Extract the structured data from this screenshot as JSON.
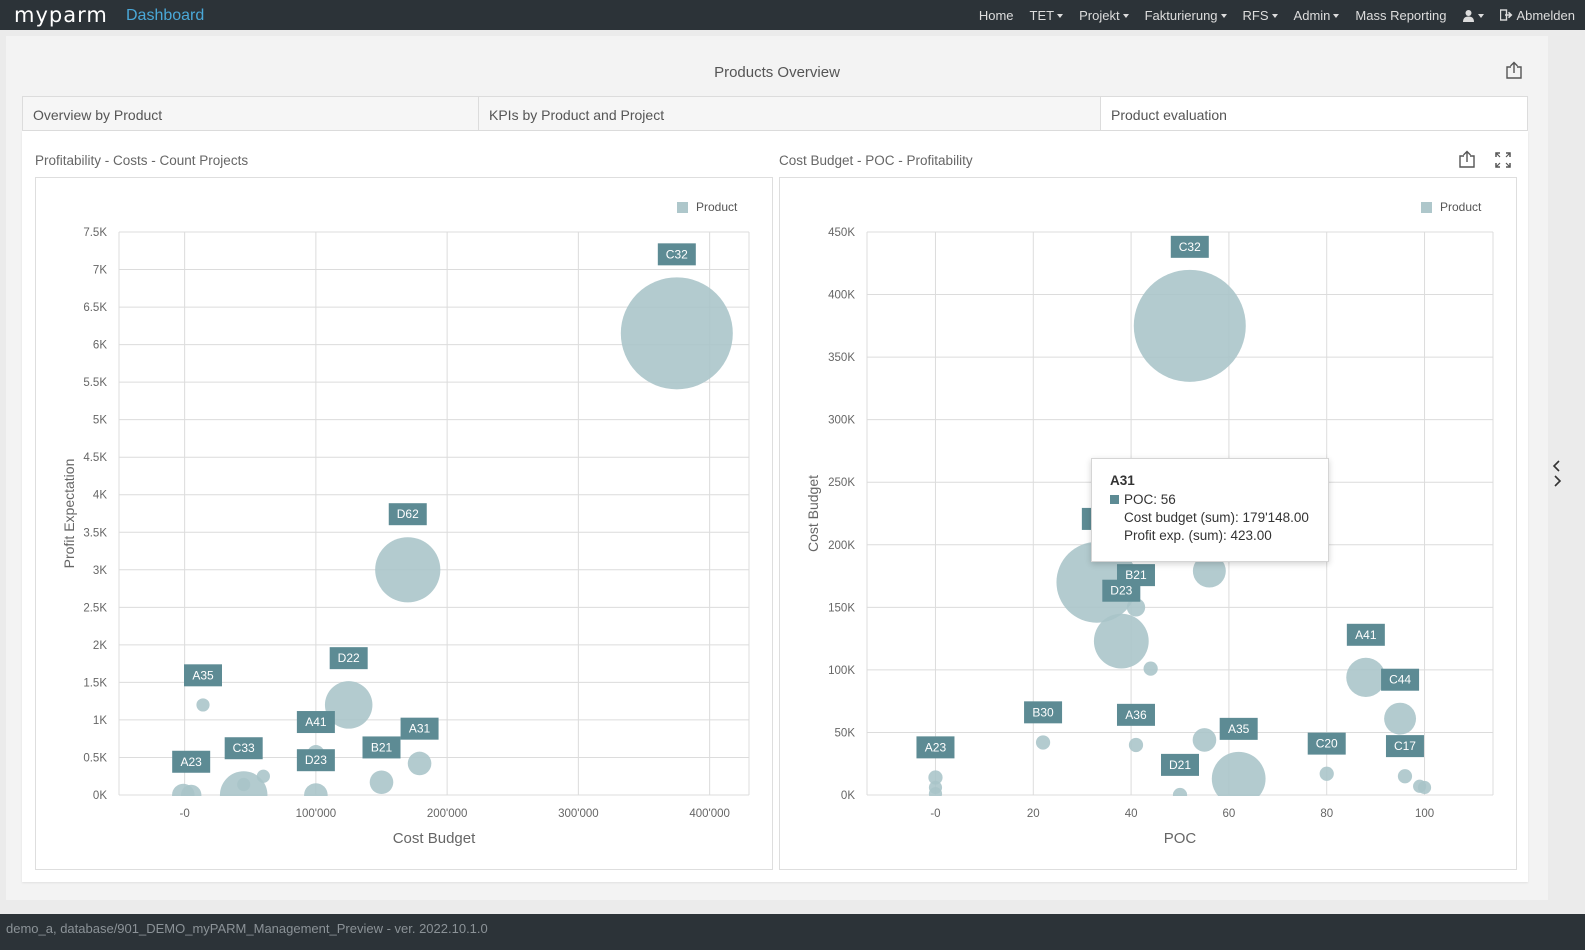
{
  "header": {
    "logo": "myparm",
    "title": "Dashboard",
    "nav": [
      {
        "label": "Home",
        "dropdown": false
      },
      {
        "label": "TET",
        "dropdown": true
      },
      {
        "label": "Projekt",
        "dropdown": true
      },
      {
        "label": "Fakturierung",
        "dropdown": true
      },
      {
        "label": "RFS",
        "dropdown": true
      },
      {
        "label": "Admin",
        "dropdown": true
      },
      {
        "label": "Mass Reporting",
        "dropdown": false
      }
    ],
    "logout": "Abmelden"
  },
  "page": {
    "title": "Products Overview",
    "tabs": [
      {
        "label": "Overview by Product",
        "active": false
      },
      {
        "label": "KPIs by Product and Project",
        "active": false
      },
      {
        "label": "Product evaluation",
        "active": true
      }
    ]
  },
  "colors": {
    "bubble": "#a9c4c8",
    "label_bg": "#5d8b94",
    "grid": "#dcdcdc",
    "topbar": "#2c3338",
    "brand_accent": "#4aa8d8"
  },
  "chart_data": [
    {
      "type": "scatter",
      "title": "Profitability - Costs - Count Projects",
      "xlabel": "Cost Budget",
      "ylabel": "Profit Expectation",
      "legend": "Product",
      "legend_position": "top-right",
      "grid": true,
      "xlim": [
        -50000,
        430000
      ],
      "ylim": [
        0,
        7500
      ],
      "xticks": [
        {
          "v": 0,
          "t": "-0"
        },
        {
          "v": 100000,
          "t": "100'000"
        },
        {
          "v": 200000,
          "t": "200'000"
        },
        {
          "v": 300000,
          "t": "300'000"
        },
        {
          "v": 400000,
          "t": "400'000"
        }
      ],
      "yticks": [
        {
          "v": 0,
          "t": "0K"
        },
        {
          "v": 500,
          "t": "0.5K"
        },
        {
          "v": 1000,
          "t": "1K"
        },
        {
          "v": 1500,
          "t": "1.5K"
        },
        {
          "v": 2000,
          "t": "2K"
        },
        {
          "v": 2500,
          "t": "2.5K"
        },
        {
          "v": 3000,
          "t": "3K"
        },
        {
          "v": 3500,
          "t": "3.5K"
        },
        {
          "v": 4000,
          "t": "4K"
        },
        {
          "v": 4500,
          "t": "4.5K"
        },
        {
          "v": 5000,
          "t": "5K"
        },
        {
          "v": 5500,
          "t": "5.5K"
        },
        {
          "v": 6000,
          "t": "6K"
        },
        {
          "v": 6500,
          "t": "6.5K"
        },
        {
          "v": 7000,
          "t": "7K"
        },
        {
          "v": 7500,
          "t": "7.5K"
        }
      ],
      "points": [
        {
          "label": "C32",
          "x": 375000,
          "y": 6150,
          "size": 10
        },
        {
          "label": "D62",
          "x": 170000,
          "y": 3000,
          "size": 5.5
        },
        {
          "label": "D22",
          "x": 125000,
          "y": 1200,
          "size": 3.8
        },
        {
          "label": "A35",
          "x": 14000,
          "y": 1200,
          "size": 0.5
        },
        {
          "label": "A41",
          "x": 100000,
          "y": 550,
          "size": 0.9
        },
        {
          "label": "A31",
          "x": 179000,
          "y": 420,
          "size": 1.5
        },
        {
          "label": "B21",
          "x": 150000,
          "y": 170,
          "size": 1.5
        },
        {
          "label": "D23",
          "x": 100000,
          "y": 0,
          "size": 1.5
        },
        {
          "label": "C33",
          "x": 45000,
          "y": 0,
          "size": 3.8
        },
        {
          "label": "A23",
          "x": 5000,
          "y": 0,
          "size": 1.2
        },
        {
          "label": "",
          "x": -1000,
          "y": 0,
          "size": 1.4
        },
        {
          "label": "",
          "x": 45000,
          "y": 140,
          "size": 0.5
        },
        {
          "label": "",
          "x": 60000,
          "y": 250,
          "size": 0.5
        }
      ]
    },
    {
      "type": "scatter",
      "title": "Cost Budget - POC - Profitability",
      "xlabel": "POC",
      "ylabel": "Cost Budget",
      "legend": "Product",
      "legend_position": "top-right",
      "grid": true,
      "xlim": [
        -14,
        114
      ],
      "ylim": [
        0,
        450000
      ],
      "xticks": [
        {
          "v": 0,
          "t": "-0"
        },
        {
          "v": 20,
          "t": "20"
        },
        {
          "v": 40,
          "t": "40"
        },
        {
          "v": 60,
          "t": "60"
        },
        {
          "v": 80,
          "t": "80"
        },
        {
          "v": 100,
          "t": "100"
        }
      ],
      "yticks": [
        {
          "v": 0,
          "t": "0K"
        },
        {
          "v": 50000,
          "t": "50K"
        },
        {
          "v": 100000,
          "t": "100K"
        },
        {
          "v": 150000,
          "t": "150K"
        },
        {
          "v": 200000,
          "t": "200K"
        },
        {
          "v": 250000,
          "t": "250K"
        },
        {
          "v": 300000,
          "t": "300K"
        },
        {
          "v": 350000,
          "t": "350K"
        },
        {
          "v": 400000,
          "t": "400K"
        },
        {
          "v": 450000,
          "t": "450K"
        }
      ],
      "points": [
        {
          "label": "C32",
          "x": 52,
          "y": 375000,
          "size": 10
        },
        {
          "label": "D",
          "x": 33,
          "y": 170000,
          "size": 7
        },
        {
          "label": "",
          "x": 56,
          "y": 179000,
          "size": 2.4
        },
        {
          "label": "B21",
          "x": 41,
          "y": 150000,
          "size": 1
        },
        {
          "label": "D23",
          "x": 38,
          "y": 123000,
          "size": 4.5
        },
        {
          "label": "",
          "x": 44,
          "y": 101000,
          "size": 0.6
        },
        {
          "label": "A41",
          "x": 88,
          "y": 94000,
          "size": 3
        },
        {
          "label": "C44",
          "x": 95,
          "y": 61000,
          "size": 2.3
        },
        {
          "label": "B30",
          "x": 22,
          "y": 42000,
          "size": 0.6
        },
        {
          "label": "A36",
          "x": 41,
          "y": 40000,
          "size": 0.6
        },
        {
          "label": "A35",
          "x": 62,
          "y": 13000,
          "size": 4.4
        },
        {
          "label": "",
          "x": 55,
          "y": 44000,
          "size": 1.5
        },
        {
          "label": "C20",
          "x": 80,
          "y": 17000,
          "size": 0.6
        },
        {
          "label": "C17",
          "x": 96,
          "y": 15000,
          "size": 0.6
        },
        {
          "label": "D21",
          "x": 50,
          "y": 0,
          "size": 0.6
        },
        {
          "label": "A23",
          "x": 0,
          "y": 14000,
          "size": 0.6
        },
        {
          "label": "",
          "x": 0,
          "y": 6000,
          "size": 0.5
        },
        {
          "label": "",
          "x": 0,
          "y": 1000,
          "size": 0.5
        },
        {
          "label": "",
          "x": 99,
          "y": 7000,
          "size": 0.5
        },
        {
          "label": "",
          "x": 100,
          "y": 6000,
          "size": 0.5
        }
      ]
    }
  ],
  "tooltip": {
    "title": "A31",
    "line1": "POC: 56",
    "line2": "Cost budget (sum): 179'148.00",
    "line3": "Profit exp. (sum): 423.00"
  },
  "footer": {
    "text": "demo_a, database/901_DEMO_myPARM_Management_Preview - ver. 2022.10.1.0"
  }
}
